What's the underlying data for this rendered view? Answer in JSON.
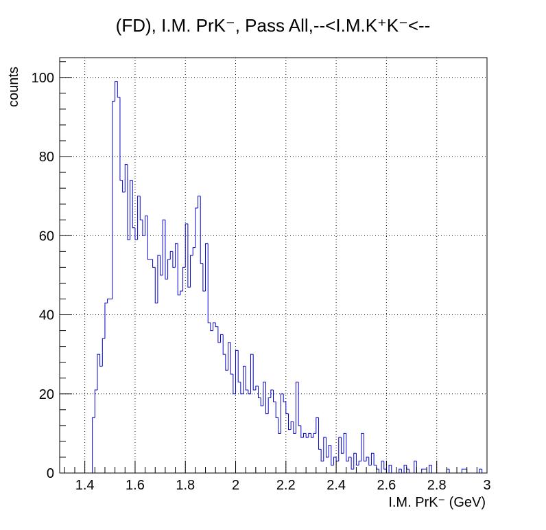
{
  "chart_data": {
    "type": "histogram",
    "title": "(FD), I.M. PrK⁻, Pass All,--<I.M.K⁺K⁻<--",
    "xlabel": "I.M. PrK⁻ (GeV)",
    "ylabel": "counts",
    "xlim": [
      1.3,
      3.0
    ],
    "ylim": [
      0,
      105
    ],
    "grid": true,
    "line_color": "#0000cc",
    "bin_width": 0.01,
    "first_bin_low_edge": 1.43,
    "x_ticks": [
      "1.4",
      "1.6",
      "1.8",
      "2",
      "2.2",
      "2.4",
      "2.6",
      "2.8",
      "3"
    ],
    "y_ticks": [
      "0",
      "20",
      "40",
      "60",
      "80",
      "100"
    ],
    "counts": [
      14,
      21,
      30,
      27,
      34,
      43,
      44,
      44,
      94,
      99,
      95,
      74,
      71,
      78,
      59,
      74,
      62,
      59,
      70,
      64,
      60,
      65,
      54,
      54,
      52,
      43,
      55,
      50,
      64,
      49,
      54,
      56,
      52,
      58,
      45,
      46,
      52,
      63,
      47,
      55,
      57,
      67,
      70,
      53,
      46,
      58,
      38,
      36,
      38,
      37,
      33,
      35,
      30,
      26,
      33,
      25,
      20,
      31,
      23,
      20,
      27,
      21,
      20,
      30,
      21,
      22,
      19,
      17,
      23,
      15,
      19,
      21,
      18,
      14,
      10,
      20,
      18,
      15,
      11,
      13,
      10,
      23,
      12,
      9,
      10,
      9,
      10,
      9,
      10,
      14,
      6,
      3,
      9,
      4,
      7,
      2,
      4,
      3,
      9,
      5,
      10,
      3,
      4,
      1,
      5,
      2,
      3,
      10,
      3,
      4,
      2,
      5,
      2,
      1,
      0,
      3,
      1,
      0,
      2,
      0,
      0,
      0,
      1,
      0,
      2,
      1,
      0,
      0,
      3,
      0,
      0,
      1,
      1,
      0,
      2,
      0,
      0,
      0,
      0,
      0,
      0,
      1,
      0,
      0,
      0,
      0,
      0,
      1,
      1,
      0,
      0,
      0,
      0,
      0,
      1,
      0,
      0
    ]
  }
}
